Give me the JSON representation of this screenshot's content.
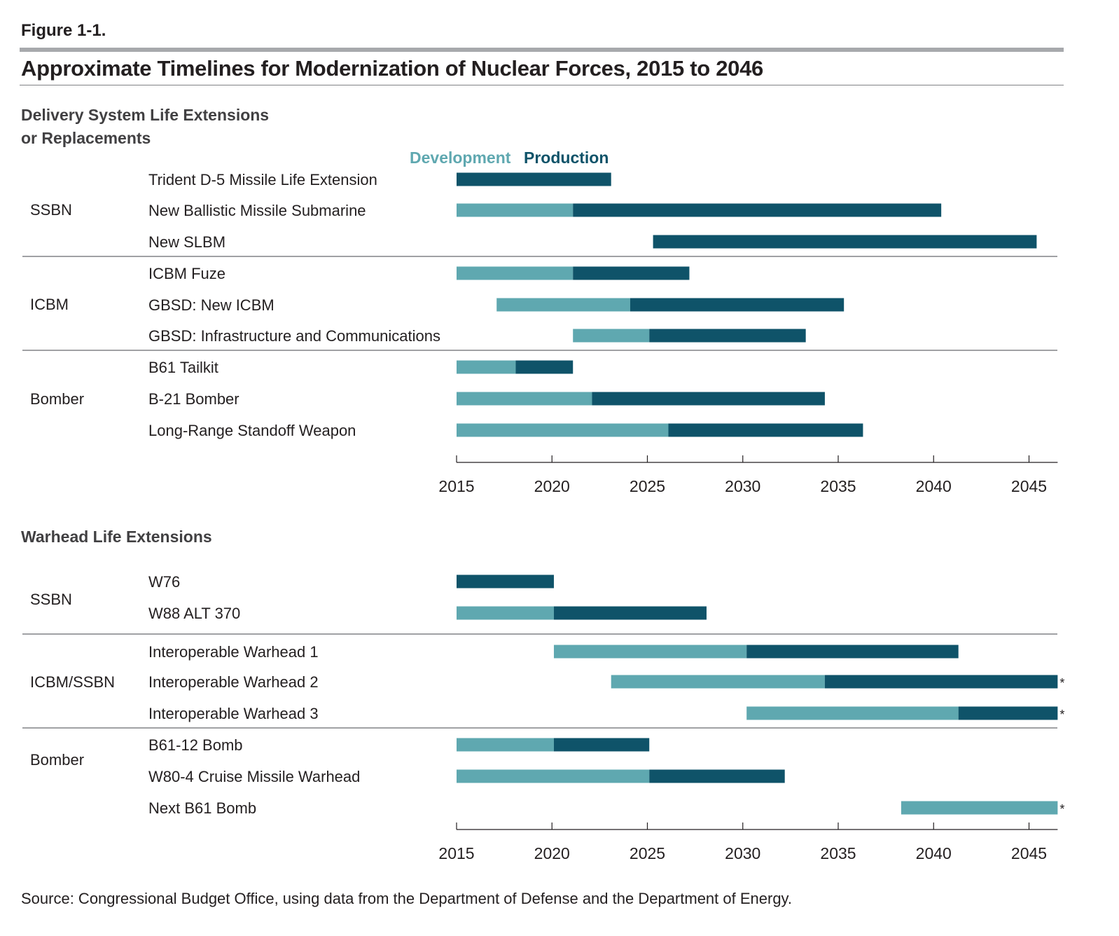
{
  "figure_label": "Figure 1-1.",
  "title": "Approximate Timelines for Modernization of Nuclear Forces, 2015 to 2046",
  "legend": {
    "development": "Development",
    "production": "Production"
  },
  "colors": {
    "development": "#5fa8b0",
    "production": "#0f5369",
    "text": "#231f20",
    "rule": "#808285"
  },
  "source": "Source: Congressional Budget Office, using data from the Department of Defense and the Department of Energy.",
  "chart_data": [
    {
      "type": "bar",
      "subtype": "gantt",
      "title": "Delivery System Life Extensions or Replacements",
      "title_lines": [
        "Delivery System Life Extensions",
        "or Replacements"
      ],
      "xlim": [
        2015,
        2046.5
      ],
      "xticks": [
        "2015",
        "2020",
        "2025",
        "2030",
        "2035",
        "2040",
        "2045"
      ],
      "groups": [
        {
          "name": "SSBN",
          "items": [
            {
              "label": "Trident D-5 Missile Life Extension",
              "dev": null,
              "prod": [
                2015,
                2023.1
              ],
              "asterisk": false
            },
            {
              "label": "New Ballistic Missile Submarine",
              "dev": [
                2015,
                2021.1
              ],
              "prod": [
                2021.1,
                2040.4
              ],
              "asterisk": false
            },
            {
              "label": "New SLBM",
              "dev": [
                2026.1,
                2025.3
              ],
              "prod": [
                2025.3,
                2045.4
              ],
              "asterisk": false
            }
          ]
        },
        {
          "name": "ICBM",
          "items": [
            {
              "label": "ICBM Fuze",
              "dev": [
                2015,
                2021.1
              ],
              "prod": [
                2021.1,
                2027.2
              ],
              "asterisk": false
            },
            {
              "label": "GBSD: New ICBM",
              "dev": [
                2017.1,
                2024.1
              ],
              "prod": [
                2024.1,
                2035.3
              ],
              "asterisk": false
            },
            {
              "label": "GBSD: Infrastructure and Communications",
              "dev": [
                2021.1,
                2025.1
              ],
              "prod": [
                2025.1,
                2033.3
              ],
              "asterisk": false
            }
          ]
        },
        {
          "name": "Bomber",
          "items": [
            {
              "label": "B61 Tailkit",
              "dev": [
                2015,
                2018.1
              ],
              "prod": [
                2018.1,
                2021.1
              ],
              "asterisk": false
            },
            {
              "label": "B-21 Bomber",
              "dev": [
                2015,
                2022.1
              ],
              "prod": [
                2022.1,
                2034.3
              ],
              "asterisk": false
            },
            {
              "label": "Long-Range Standoff Weapon",
              "dev": [
                2015,
                2026.1
              ],
              "prod": [
                2026.1,
                2036.3
              ],
              "asterisk": false
            }
          ]
        }
      ]
    },
    {
      "type": "bar",
      "subtype": "gantt",
      "title": "Warhead Life Extensions",
      "title_lines": [
        "Warhead Life Extensions"
      ],
      "xlim": [
        2015,
        2046.5
      ],
      "xticks": [
        "2015",
        "2020",
        "2025",
        "2030",
        "2035",
        "2040",
        "2045"
      ],
      "groups": [
        {
          "name": "SSBN",
          "items": [
            {
              "label": "W76",
              "dev": null,
              "prod": [
                2015,
                2020.1
              ],
              "asterisk": false
            },
            {
              "label": "W88 ALT 370",
              "dev": [
                2015,
                2020.1
              ],
              "prod": [
                2020.1,
                2028.1
              ],
              "asterisk": false
            }
          ]
        },
        {
          "name": "ICBM/SSBN",
          "items": [
            {
              "label": "Interoperable Warhead 1",
              "dev": [
                2020.1,
                2030.2
              ],
              "prod": [
                2030.2,
                2041.3
              ],
              "asterisk": false
            },
            {
              "label": "Interoperable Warhead 2",
              "dev": [
                2023.1,
                2034.3
              ],
              "prod": [
                2034.3,
                2046.5
              ],
              "asterisk": true
            },
            {
              "label": "Interoperable Warhead 3",
              "dev": [
                2030.2,
                2041.3
              ],
              "prod": [
                2041.3,
                2046.5
              ],
              "asterisk": true
            }
          ]
        },
        {
          "name": "Bomber",
          "items": [
            {
              "label": "B61-12 Bomb",
              "dev": [
                2015,
                2020.1
              ],
              "prod": [
                2020.1,
                2025.1
              ],
              "asterisk": false
            },
            {
              "label": "W80-4 Cruise Missile Warhead",
              "dev": [
                2015,
                2025.1
              ],
              "prod": [
                2025.1,
                2032.2
              ],
              "asterisk": false
            },
            {
              "label": "Next B61 Bomb",
              "dev": [
                2038.3,
                2046.5
              ],
              "prod": null,
              "asterisk": true
            }
          ]
        }
      ]
    }
  ]
}
